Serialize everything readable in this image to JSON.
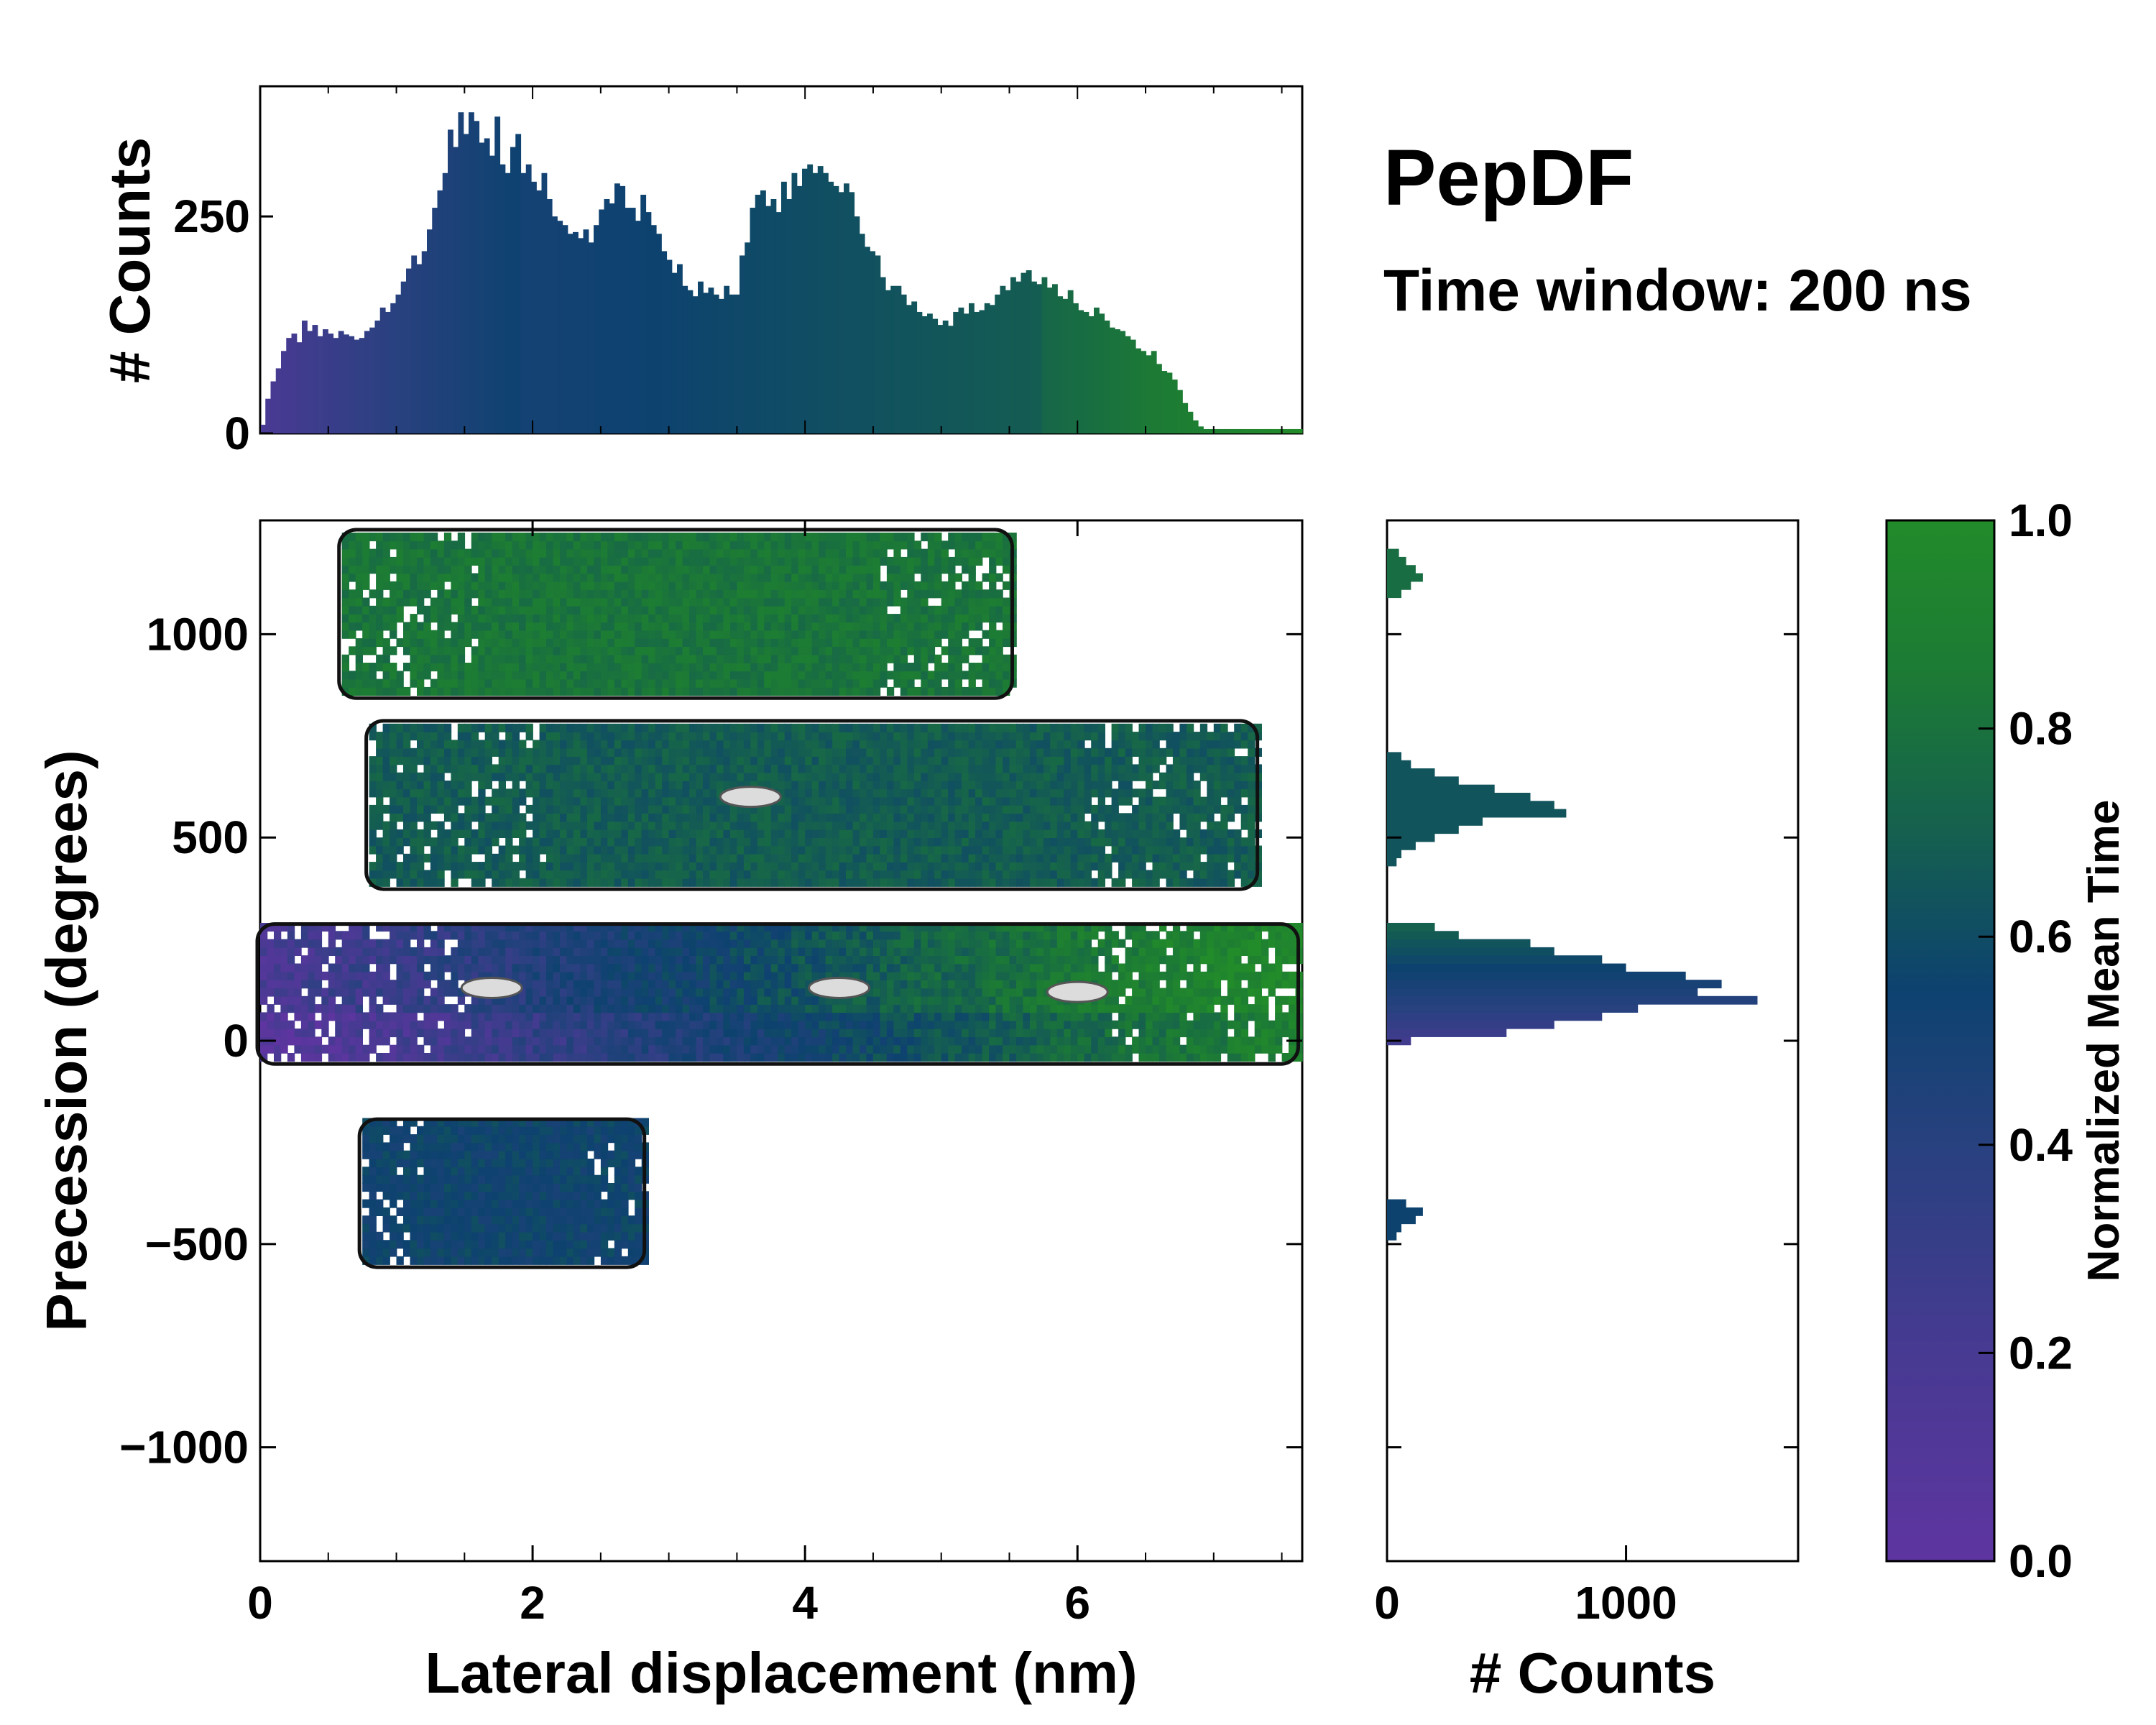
{
  "chart_data": {
    "type": "heatmap",
    "title": "PepDF",
    "subtitle": "Time window: 200 ns",
    "main": {
      "xlabel": "Lateral displacement (nm)",
      "ylabel": "Precession (degrees)",
      "xlim": [
        0,
        7.65
      ],
      "ylim": [
        -1280,
        1280
      ],
      "xticks": [
        0,
        2,
        4,
        6
      ],
      "xtick_labels": [
        "0",
        "2",
        "4",
        "6"
      ],
      "yticks": [
        1000,
        500,
        0,
        -500,
        -1000
      ],
      "ytick_labels": [
        "1000",
        "500",
        "0",
        "−500",
        "−1000"
      ],
      "regions": [
        {
          "name": "band-top",
          "x": [
            0.6,
            5.5
          ],
          "y": [
            850,
            1250
          ],
          "color_value": 0.8
        },
        {
          "name": "band-600",
          "x": [
            0.8,
            7.3
          ],
          "y": [
            380,
            780
          ],
          "color_value": 0.65
        },
        {
          "name": "band-0",
          "x": [
            0.0,
            7.6
          ],
          "y": [
            -50,
            280
          ],
          "color_value": 0.5
        },
        {
          "name": "band-minus500",
          "x": [
            0.75,
            2.8
          ],
          "y": [
            -550,
            -200
          ],
          "color_value": 0.5
        }
      ]
    },
    "top_hist": {
      "ylabel": "# Counts",
      "ylim": [
        0,
        400
      ],
      "yticks": [
        0,
        250
      ],
      "ytick_labels": [
        "0",
        "250"
      ],
      "values": [
        10,
        40,
        60,
        75,
        95,
        110,
        115,
        105,
        130,
        118,
        125,
        112,
        120,
        115,
        110,
        118,
        114,
        112,
        108,
        110,
        118,
        122,
        130,
        145,
        140,
        150,
        160,
        175,
        190,
        205,
        195,
        210,
        235,
        260,
        280,
        300,
        350,
        330,
        370,
        345,
        370,
        360,
        335,
        340,
        320,
        365,
        310,
        300,
        330,
        345,
        300,
        310,
        290,
        280,
        300,
        270,
        250,
        245,
        240,
        230,
        232,
        225,
        235,
        220,
        240,
        258,
        270,
        265,
        288,
        285,
        260,
        260,
        245,
        275,
        255,
        240,
        230,
        210,
        200,
        185,
        195,
        170,
        165,
        158,
        175,
        162,
        168,
        160,
        155,
        170,
        160,
        160,
        205,
        220,
        260,
        275,
        280,
        262,
        270,
        255,
        290,
        270,
        300,
        285,
        305,
        310,
        300,
        308,
        300,
        290,
        285,
        278,
        288,
        278,
        250,
        230,
        215,
        210,
        205,
        180,
        165,
        170,
        170,
        160,
        148,
        152,
        140,
        135,
        138,
        132,
        125,
        130,
        124,
        140,
        145,
        138,
        150,
        140,
        142,
        150,
        148,
        160,
        170,
        165,
        180,
        175,
        185,
        188,
        175,
        172,
        180,
        168,
        172,
        158,
        155,
        165,
        150,
        142,
        140,
        135,
        145,
        138,
        130,
        122,
        120,
        118,
        112,
        108,
        98,
        95,
        90,
        95,
        80,
        72,
        70,
        62,
        50,
        35,
        25,
        15,
        8,
        5,
        5,
        5,
        5,
        5,
        5,
        5,
        5,
        5,
        5,
        5,
        5,
        5,
        5,
        5,
        5,
        5,
        5,
        5
      ]
    },
    "right_hist": {
      "xlabel": "# Counts",
      "xlim": [
        0,
        1720
      ],
      "xticks": [
        0,
        1000
      ],
      "xtick_labels": [
        "0",
        "1000"
      ],
      "y_centers": [
        -440,
        -420,
        -400,
        -460,
        -480,
        0,
        20,
        40,
        60,
        80,
        100,
        120,
        140,
        160,
        180,
        200,
        220,
        240,
        260,
        280,
        440,
        460,
        480,
        500,
        520,
        540,
        560,
        580,
        600,
        620,
        640,
        660,
        680,
        700,
        1100,
        1120,
        1140,
        1160,
        1180,
        1200
      ],
      "values": [
        120,
        150,
        80,
        60,
        40,
        100,
        500,
        700,
        900,
        1050,
        1550,
        1300,
        1400,
        1250,
        1000,
        900,
        700,
        600,
        300,
        200,
        40,
        60,
        120,
        200,
        300,
        400,
        750,
        700,
        600,
        450,
        300,
        200,
        100,
        60,
        60,
        100,
        150,
        120,
        80,
        50
      ]
    },
    "colorbar": {
      "label": "Normalized Mean Time",
      "range": [
        0,
        1
      ],
      "ticks": [
        0.0,
        0.2,
        0.4,
        0.6,
        0.8,
        1.0
      ],
      "tick_labels": [
        "0.0",
        "0.2",
        "0.4",
        "0.6",
        "0.8",
        "1.0"
      ],
      "colors": [
        "#5e35a0",
        "#31417f",
        "#1f3f7a",
        "#0f4571",
        "#17694f",
        "#228b2a"
      ]
    }
  }
}
